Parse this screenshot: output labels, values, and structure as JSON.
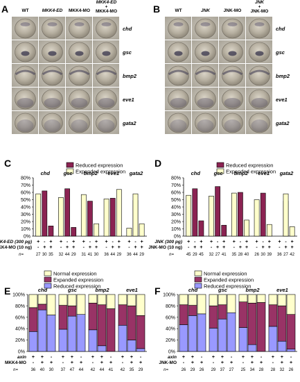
{
  "figure": {
    "panels": {
      "A": {
        "letter": "A",
        "column_labels": [
          "WT",
          "MKK4-ED",
          "MKK4-MO",
          "MKK4-ED\n+\nMKK4-MO"
        ],
        "row_labels": [
          "chd",
          "gsc",
          "bmp2",
          "eve1",
          "gata2"
        ]
      },
      "B": {
        "letter": "B",
        "column_labels": [
          "WT",
          "JNK",
          "JNK-MO",
          "JNK\n+\nJNK-MO"
        ],
        "row_labels": [
          "chd",
          "gsc",
          "bmp2",
          "eve1",
          "gata2"
        ]
      }
    }
  },
  "chart_data": [
    {
      "panel": "C",
      "type": "bar",
      "legend": [
        "Reduced expression",
        "Expanded expression"
      ],
      "ylim": [
        0,
        80
      ],
      "yticks": [
        "0%",
        "10%",
        "20%",
        "30%",
        "40%",
        "50%",
        "60%",
        "70%",
        "80%"
      ],
      "gene_labels": [
        "chd",
        "gsc",
        "bmp2",
        "eve1",
        "gata2"
      ],
      "row1_label": "MKK4-ED (300 pg)",
      "row2_label": "MKK4-MO (10 ng)",
      "row1_signs": [
        "+",
        "-",
        "+",
        "+",
        "-",
        "+",
        "+",
        "-",
        "+",
        "+",
        "-",
        "+",
        "+",
        "-",
        "+"
      ],
      "row2_signs": [
        "-",
        "+",
        "+",
        "-",
        "+",
        "+",
        "-",
        "+",
        "+",
        "-",
        "+",
        "+",
        "-",
        "+",
        "+"
      ],
      "n_label": "n=",
      "n_values": [
        "27",
        "30",
        "35",
        "32",
        "44",
        "29",
        "31",
        "41",
        "30",
        "36",
        "44",
        "29",
        "36",
        "44",
        "29"
      ],
      "series": [
        {
          "name": "Reduced expression",
          "color": "#8b2352",
          "values": [
            0,
            62,
            14,
            0,
            65,
            12,
            0,
            48,
            0,
            0,
            52,
            0,
            0,
            49,
            0
          ]
        },
        {
          "name": "Expanded expression",
          "color": "#ffffcc",
          "values": [
            58,
            0,
            0,
            53,
            0,
            0,
            57,
            0,
            17,
            51,
            0,
            64,
            11,
            58,
            17
          ]
        }
      ]
    },
    {
      "panel": "D",
      "type": "bar",
      "legend": [
        "Reduced expression",
        "Expanded expression"
      ],
      "ylim": [
        0,
        80
      ],
      "yticks": [
        "0%",
        "10%",
        "20%",
        "30%",
        "40%",
        "50%",
        "60%",
        "70%",
        "80%"
      ],
      "gene_labels": [
        "chd",
        "gsc",
        "bmp2",
        "eve1",
        "gata2"
      ],
      "row1_label": "JNK (300 pg)",
      "row2_label": "JNK-MO (10 ng)",
      "row1_signs": [
        "+",
        "-",
        "+",
        "+",
        "-",
        "+",
        "+",
        "-",
        "+",
        "+",
        "-",
        "+",
        "+",
        "-",
        "+"
      ],
      "row2_signs": [
        "-",
        "+",
        "+",
        "-",
        "+",
        "+",
        "-",
        "+",
        "+",
        "-",
        "+",
        "+",
        "-",
        "+",
        "+"
      ],
      "n_label": "n=",
      "n_values": [
        "45",
        "29",
        "45",
        "32",
        "27",
        "41",
        "35",
        "28",
        "40",
        "26",
        "30",
        "39",
        "36",
        "27",
        "42"
      ],
      "series": [
        {
          "name": "Reduced expression",
          "color": "#8b2352",
          "values": [
            0,
            65,
            21,
            0,
            68,
            15,
            0,
            60,
            0,
            0,
            59,
            0,
            0,
            48,
            0
          ]
        },
        {
          "name": "Expanded expression",
          "color": "#ffffcc",
          "values": [
            56,
            0,
            0,
            55,
            0,
            0,
            59,
            0,
            22,
            50,
            0,
            16,
            0,
            58,
            13
          ]
        }
      ]
    },
    {
      "panel": "E",
      "type": "bar",
      "stacked": true,
      "legend": [
        "Normal expression",
        "Expanded expression",
        "Reduced expression"
      ],
      "ylim": [
        0,
        100
      ],
      "yticks": [
        "0%",
        "20%",
        "40%",
        "60%",
        "80%",
        "100%"
      ],
      "gene_labels": [
        "chd",
        "gsc",
        "bmp2",
        "eve1"
      ],
      "row1_label": "axin",
      "row2_label": "MKK4-MO",
      "row1_signs": [
        "+",
        "+",
        "-",
        "+",
        "+",
        "-",
        "+",
        "+",
        "-",
        "+",
        "+",
        "-"
      ],
      "row2_signs": [
        "-",
        "+",
        "+",
        "-",
        "+",
        "+",
        "-",
        "+",
        "+",
        "-",
        "+",
        "+"
      ],
      "n_label": "n=",
      "n_values": [
        "36",
        "40",
        "30",
        "37",
        "47",
        "44",
        "42",
        "44",
        "41",
        "42",
        "35",
        "29"
      ],
      "series": [
        {
          "name": "Reduced expression",
          "color": "#9999ff",
          "values": [
            35,
            73,
            64,
            39,
            62,
            65,
            38,
            10,
            0,
            46,
            20,
            5
          ]
        },
        {
          "name": "Expanded expression",
          "color": "#993366",
          "values": [
            42,
            10,
            0,
            42,
            18,
            0,
            47,
            72,
            75,
            36,
            60,
            58
          ]
        },
        {
          "name": "Normal expression",
          "color": "#ffffcc",
          "values": [
            23,
            17,
            36,
            19,
            20,
            35,
            15,
            18,
            25,
            18,
            20,
            37
          ]
        }
      ]
    },
    {
      "panel": "F",
      "type": "bar",
      "stacked": true,
      "legend": [
        "Normal expression",
        "Expanded expression",
        "Reduced expression"
      ],
      "ylim": [
        0,
        100
      ],
      "yticks": [
        "0%",
        "20%",
        "40%",
        "60%",
        "80%",
        "100%"
      ],
      "gene_labels": [
        "chd",
        "gsc",
        "bmp2",
        "eve1"
      ],
      "row1_label": "axin",
      "row2_label": "JNK-MO",
      "row1_signs": [
        "+",
        "+",
        "-",
        "+",
        "+",
        "-",
        "+",
        "+",
        "-",
        "+",
        "+",
        "-"
      ],
      "row2_signs": [
        "-",
        "+",
        "+",
        "-",
        "+",
        "+",
        "-",
        "+",
        "+",
        "-",
        "+",
        "+"
      ],
      "n_label": "n=",
      "n_values": [
        "26",
        "29",
        "26",
        "29",
        "37",
        "27",
        "25",
        "34",
        "28",
        "28",
        "32",
        "26"
      ],
      "series": [
        {
          "name": "Reduced expression",
          "color": "#9999ff",
          "values": [
            47,
            63,
            66,
            41,
            57,
            68,
            42,
            12,
            0,
            44,
            18,
            4
          ]
        },
        {
          "name": "Expanded expression",
          "color": "#993366",
          "values": [
            35,
            18,
            0,
            39,
            25,
            0,
            45,
            73,
            86,
            38,
            62,
            61
          ]
        },
        {
          "name": "Normal expression",
          "color": "#ffffcc",
          "values": [
            18,
            19,
            34,
            20,
            18,
            32,
            13,
            15,
            14,
            18,
            20,
            35
          ]
        }
      ]
    }
  ]
}
